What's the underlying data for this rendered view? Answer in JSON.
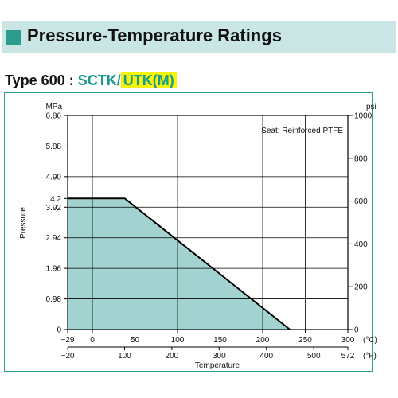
{
  "header": {
    "title": "Pressure-Temperature Ratings"
  },
  "subtitle": {
    "type_label": "Type 600 : ",
    "sctk": "SCTK",
    "sep": "/",
    "utk": "UTK(M)"
  },
  "chart_data": {
    "type": "area",
    "annotation": "Seat: Reinforced PTFE",
    "ylabel": "Pressure",
    "xlabel": "Temperature",
    "y_left_unit": "MPa",
    "y_right_unit": "psi",
    "x_bottom_unit": "(°C)",
    "x_top_unit": "(°F)",
    "xlim": [
      -29,
      300
    ],
    "ylim": [
      0,
      6.86
    ],
    "x_bottom_ticks": [
      -29,
      0,
      50,
      100,
      150,
      200,
      250,
      300
    ],
    "x_bottom_labels": [
      "−29",
      "0",
      "50",
      "100",
      "150",
      "200",
      "250",
      "300"
    ],
    "x_top_ticks_f": [
      -20,
      100,
      200,
      300,
      400,
      500,
      572
    ],
    "x_top_labels": [
      "−20",
      "100",
      "200",
      "300",
      "400",
      "500",
      "572"
    ],
    "y_left_ticks": [
      0,
      0.98,
      1.96,
      2.94,
      3.92,
      4.2,
      4.9,
      5.88,
      6.86
    ],
    "y_left_labels": [
      "0",
      "0.98",
      "1.96",
      "2.94",
      "3.92",
      "4.2",
      "4.90",
      "5.88",
      "6.86"
    ],
    "y_right_ticks": [
      0,
      200,
      400,
      600,
      800,
      1000
    ],
    "y_right_labels": [
      "0",
      "200",
      "400",
      "600",
      "800",
      "1000"
    ],
    "series": [
      {
        "x": [
          -29,
          38,
          232
        ],
        "y": [
          4.2,
          4.2,
          0
        ]
      }
    ],
    "grid": true,
    "colors": {
      "fill": "#a3d3d1",
      "line": "#000000",
      "grid": "#000000",
      "border": "#2a9d8f"
    }
  }
}
